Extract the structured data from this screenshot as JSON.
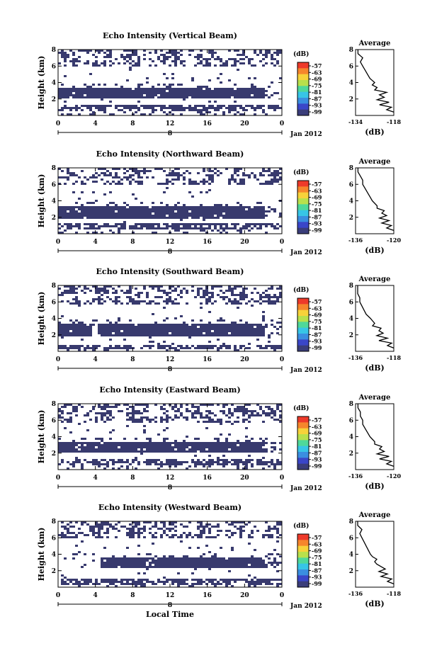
{
  "figure": {
    "x_axis_label": "Local Time",
    "date_label": "Jan 2012",
    "day_label": "8",
    "colorbar_unit": "(dB)",
    "colorbar_ticks": [
      "-57",
      "-63",
      "-69",
      "-75",
      "-81",
      "-87",
      "-93",
      "-99"
    ],
    "colorbar_colors": [
      "#ee3a2a",
      "#f6862c",
      "#f7d23a",
      "#b8e04c",
      "#4fd89a",
      "#37c5e6",
      "#3a8ee0",
      "#3a46c8",
      "#3a3d7a"
    ],
    "fill_color": "#383a6e",
    "time_ticks": [
      "0",
      "4",
      "8",
      "12",
      "16",
      "20",
      "0"
    ],
    "height_ticks": [
      "8",
      "6",
      "4",
      "2"
    ],
    "height_label": "Height (km)",
    "avg_title": "Average",
    "avg_unit": "(dB)"
  },
  "chart_data": [
    {
      "type": "heatmap",
      "title": "Echo Intensity (Vertical Beam)",
      "xlabel": "",
      "ylabel": "Height (km)",
      "xlim": [
        0,
        24
      ],
      "ylim": [
        0,
        8
      ],
      "colorbar": {
        "unit": "(dB)",
        "range": [
          -99,
          -57
        ]
      },
      "main_layer_km": [
        2.1,
        3.4
      ],
      "surface_layer_km": [
        0.7,
        1.4
      ],
      "upper_clutter_km": [
        6.0,
        8.0
      ],
      "average_profile": {
        "title": "Average",
        "xlabel": "(dB)",
        "xticks": [
          "-134",
          "-118"
        ],
        "xlim": [
          -134,
          -118
        ],
        "height_km": [
          0.4,
          0.7,
          1.0,
          1.3,
          1.6,
          1.9,
          2.2,
          2.5,
          2.8,
          3.1,
          3.4,
          3.7,
          4.0,
          4.5,
          5.0,
          5.5,
          6.0,
          6.5,
          7.0,
          7.5,
          8.0
        ],
        "db": [
          -118,
          -121,
          -119,
          -124,
          -120,
          -125,
          -122,
          -124,
          -121,
          -126,
          -125,
          -127,
          -126,
          -128,
          -129,
          -130,
          -131,
          -132,
          -131,
          -133,
          -133
        ]
      }
    },
    {
      "type": "heatmap",
      "title": "Echo Intensity (Northward Beam)",
      "xlabel": "",
      "ylabel": "Height (km)",
      "xlim": [
        0,
        24
      ],
      "ylim": [
        0,
        8
      ],
      "colorbar": {
        "unit": "(dB)",
        "range": [
          -99,
          -57
        ]
      },
      "main_layer_km": [
        2.0,
        3.6
      ],
      "surface_layer_km": [
        0.6,
        1.4
      ],
      "upper_clutter_km": [
        6.0,
        8.0
      ],
      "average_profile": {
        "title": "Average",
        "xlabel": "(dB)",
        "xticks": [
          "-136",
          "-120"
        ],
        "xlim": [
          -136,
          -120
        ],
        "height_km": [
          0.4,
          0.7,
          1.0,
          1.3,
          1.6,
          1.9,
          2.2,
          2.5,
          2.8,
          3.1,
          3.4,
          3.7,
          4.0,
          4.5,
          5.0,
          5.5,
          6.0,
          6.5,
          7.0,
          7.5,
          8.0
        ],
        "db": [
          -120,
          -123,
          -121,
          -125,
          -122,
          -126,
          -123,
          -125,
          -124,
          -127,
          -127,
          -128,
          -129,
          -130,
          -131,
          -132,
          -133,
          -133,
          -134,
          -135,
          -135
        ]
      }
    },
    {
      "type": "heatmap",
      "title": "Echo Intensity (Southward Beam)",
      "xlabel": "",
      "ylabel": "Height (km)",
      "xlim": [
        0,
        24
      ],
      "ylim": [
        0,
        8
      ],
      "colorbar": {
        "unit": "(dB)",
        "range": [
          -99,
          -57
        ]
      },
      "main_layer_km": [
        1.9,
        3.4
      ],
      "surface_layer_km": [
        0.3,
        1.0
      ],
      "upper_clutter_km": [
        5.8,
        8.0
      ],
      "average_profile": {
        "title": "Average",
        "xlabel": "(dB)",
        "xticks": [
          "-136",
          "-118"
        ],
        "xlim": [
          -136,
          -118
        ],
        "height_km": [
          0.4,
          0.7,
          1.0,
          1.3,
          1.6,
          1.9,
          2.2,
          2.5,
          2.8,
          3.1,
          3.4,
          3.7,
          4.0,
          4.5,
          5.0,
          5.5,
          6.0,
          6.5,
          7.0,
          7.5,
          8.0
        ],
        "db": [
          -118,
          -121,
          -119,
          -125,
          -121,
          -126,
          -123,
          -125,
          -124,
          -128,
          -127,
          -128,
          -129,
          -131,
          -132,
          -133,
          -134,
          -134,
          -135,
          -135,
          -135
        ]
      }
    },
    {
      "type": "heatmap",
      "title": "Echo Intensity (Eastward Beam)",
      "xlabel": "",
      "ylabel": "Height (km)",
      "xlim": [
        0,
        24
      ],
      "ylim": [
        0,
        8
      ],
      "colorbar": {
        "unit": "(dB)",
        "range": [
          -99,
          -57
        ]
      },
      "main_layer_km": [
        2.1,
        3.4
      ],
      "surface_layer_km": [
        0.7,
        1.3
      ],
      "upper_clutter_km": [
        5.8,
        8.0
      ],
      "average_profile": {
        "title": "Average",
        "xlabel": "(dB)",
        "xticks": [
          "-136",
          "-120"
        ],
        "xlim": [
          -136,
          -120
        ],
        "height_km": [
          0.4,
          0.7,
          1.0,
          1.3,
          1.6,
          1.9,
          2.2,
          2.5,
          2.8,
          3.1,
          3.4,
          3.7,
          4.0,
          4.5,
          5.0,
          5.5,
          6.0,
          6.5,
          7.0,
          7.5,
          8.0
        ],
        "db": [
          -120,
          -123,
          -121,
          -126,
          -122,
          -127,
          -124,
          -126,
          -125,
          -128,
          -128,
          -129,
          -130,
          -131,
          -132,
          -133,
          -133,
          -134,
          -134,
          -135,
          -135
        ]
      }
    },
    {
      "type": "heatmap",
      "title": "Echo Intensity (Westward Beam)",
      "xlabel": "Local Time",
      "ylabel": "Height (km)",
      "xlim": [
        0,
        24
      ],
      "ylim": [
        0,
        8
      ],
      "colorbar": {
        "unit": "(dB)",
        "range": [
          -99,
          -57
        ]
      },
      "main_layer_km": [
        2.4,
        3.7
      ],
      "surface_layer_km": [
        0.5,
        1.2
      ],
      "upper_clutter_km": [
        6.0,
        8.0
      ],
      "average_profile": {
        "title": "Average",
        "xlabel": "(dB)",
        "xticks": [
          "-136",
          "-118"
        ],
        "xlim": [
          -136,
          -118
        ],
        "height_km": [
          0.4,
          0.7,
          1.0,
          1.3,
          1.6,
          1.9,
          2.2,
          2.5,
          2.8,
          3.1,
          3.4,
          3.7,
          4.0,
          4.5,
          5.0,
          5.5,
          6.0,
          6.5,
          7.0,
          7.5,
          8.0
        ],
        "db": [
          -118,
          -121,
          -119,
          -124,
          -121,
          -125,
          -122,
          -124,
          -126,
          -127,
          -126,
          -128,
          -129,
          -130,
          -131,
          -132,
          -133,
          -134,
          -133,
          -135,
          -135
        ]
      }
    }
  ]
}
